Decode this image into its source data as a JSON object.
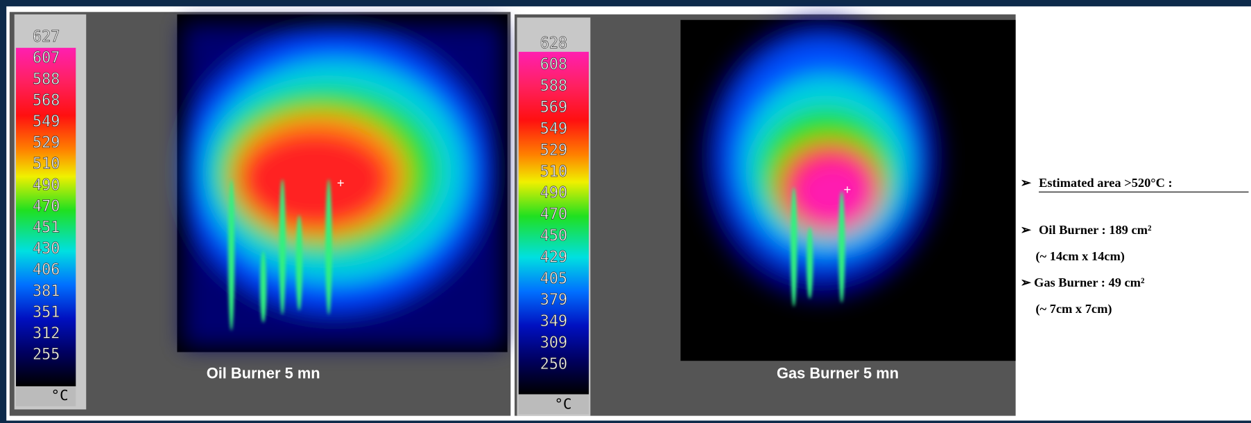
{
  "panels": [
    {
      "scale": [
        "627",
        "607",
        "588",
        "568",
        "549",
        "529",
        "510",
        "490",
        "470",
        "451",
        "430",
        "406",
        "381",
        "351",
        "312",
        "255"
      ],
      "unit": "°C",
      "caption": "Oil Burner 5 mn"
    },
    {
      "scale": [
        "628",
        "608",
        "588",
        "569",
        "549",
        "529",
        "510",
        "490",
        "470",
        "450",
        "429",
        "405",
        "379",
        "349",
        "309",
        "250"
      ],
      "unit": "°C",
      "caption": "Gas Burner 5 mn"
    }
  ],
  "notes": {
    "heading": "Estimated area >520°C :",
    "items": [
      "Oil Burner : 189 cm²",
      "(~ 14cm x 14cm)",
      "Gas Burner :  49 cm²",
      "(~ 7cm x 7cm)"
    ]
  }
}
